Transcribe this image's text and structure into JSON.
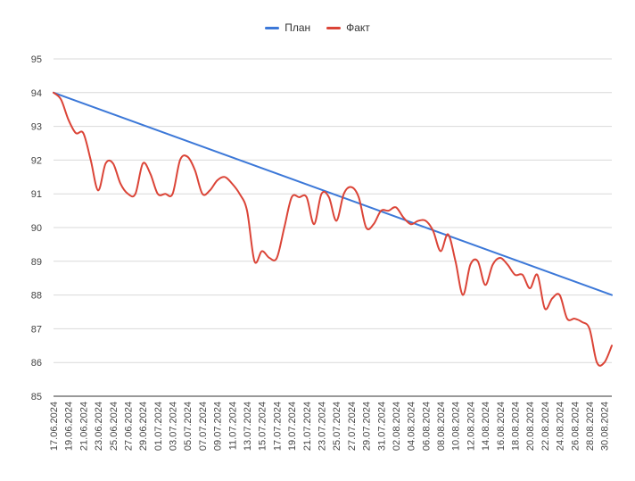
{
  "chart_data": {
    "type": "line",
    "title": "",
    "xlabel": "",
    "ylabel": "",
    "ylim": [
      85,
      95
    ],
    "yticks": [
      85,
      86,
      87,
      88,
      89,
      90,
      91,
      92,
      93,
      94,
      95
    ],
    "legend_position": "top-center",
    "grid": true,
    "x_tick_labels": [
      "17.06.2024",
      "19.06.2024",
      "21.06.2024",
      "23.06.2024",
      "25.06.2024",
      "27.06.2024",
      "29.06.2024",
      "01.07.2024",
      "03.07.2024",
      "05.07.2024",
      "07.07.2024",
      "09.07.2024",
      "11.07.2024",
      "13.07.2024",
      "15.07.2024",
      "17.07.2024",
      "19.07.2024",
      "21.07.2024",
      "23.07.2024",
      "25.07.2024",
      "27.07.2024",
      "29.07.2024",
      "31.07.2024",
      "02.08.2024",
      "04.08.2024",
      "06.08.2024",
      "08.08.2024",
      "10.08.2024",
      "12.08.2024",
      "14.08.2024",
      "16.08.2024",
      "18.08.2024",
      "20.08.2024",
      "22.08.2024",
      "24.08.2024",
      "26.08.2024",
      "28.08.2024",
      "30.08.2024"
    ],
    "series": [
      {
        "name": "План",
        "color": "#3c78d8",
        "x": [
          "17.06.2024",
          "31.08.2024"
        ],
        "y": [
          94.0,
          88.0
        ]
      },
      {
        "name": "Факт",
        "color": "#db4437",
        "x": [
          "17.06.2024",
          "18.06.2024",
          "19.06.2024",
          "20.06.2024",
          "21.06.2024",
          "22.06.2024",
          "23.06.2024",
          "24.06.2024",
          "25.06.2024",
          "26.06.2024",
          "27.06.2024",
          "28.06.2024",
          "29.06.2024",
          "30.06.2024",
          "01.07.2024",
          "02.07.2024",
          "03.07.2024",
          "04.07.2024",
          "05.07.2024",
          "06.07.2024",
          "07.07.2024",
          "08.07.2024",
          "09.07.2024",
          "10.07.2024",
          "11.07.2024",
          "12.07.2024",
          "13.07.2024",
          "14.07.2024",
          "15.07.2024",
          "16.07.2024",
          "17.07.2024",
          "18.07.2024",
          "19.07.2024",
          "20.07.2024",
          "21.07.2024",
          "22.07.2024",
          "23.07.2024",
          "24.07.2024",
          "25.07.2024",
          "26.07.2024",
          "27.07.2024",
          "28.07.2024",
          "29.07.2024",
          "30.07.2024",
          "31.07.2024",
          "01.08.2024",
          "02.08.2024",
          "03.08.2024",
          "04.08.2024",
          "05.08.2024",
          "06.08.2024",
          "07.08.2024",
          "08.08.2024",
          "09.08.2024",
          "10.08.2024",
          "11.08.2024",
          "12.08.2024",
          "13.08.2024",
          "14.08.2024",
          "15.08.2024",
          "16.08.2024",
          "17.08.2024",
          "18.08.2024",
          "19.08.2024",
          "20.08.2024",
          "21.08.2024",
          "22.08.2024",
          "23.08.2024",
          "24.08.2024",
          "25.08.2024",
          "26.08.2024",
          "27.08.2024",
          "28.08.2024",
          "29.08.2024",
          "30.08.2024",
          "31.08.2024"
        ],
        "y": [
          94.0,
          93.8,
          93.2,
          92.8,
          92.8,
          92.0,
          91.1,
          91.9,
          91.9,
          91.3,
          91.0,
          91.0,
          91.9,
          91.6,
          91.0,
          91.0,
          91.0,
          92.0,
          92.1,
          91.7,
          91.0,
          91.1,
          91.4,
          91.5,
          91.3,
          91.0,
          90.5,
          89.0,
          89.3,
          89.1,
          89.1,
          90.0,
          90.9,
          90.9,
          90.9,
          90.1,
          91.0,
          90.9,
          90.2,
          91.0,
          91.2,
          90.9,
          90.0,
          90.1,
          90.5,
          90.5,
          90.6,
          90.3,
          90.1,
          90.2,
          90.2,
          89.9,
          89.3,
          89.8,
          89.0,
          88.0,
          88.9,
          89.0,
          88.3,
          88.9,
          89.1,
          88.9,
          88.6,
          88.6,
          88.2,
          88.6,
          87.6,
          87.9,
          88.0,
          87.3,
          87.3,
          87.2,
          87.0,
          86.0,
          86.0,
          86.5
        ]
      }
    ]
  }
}
